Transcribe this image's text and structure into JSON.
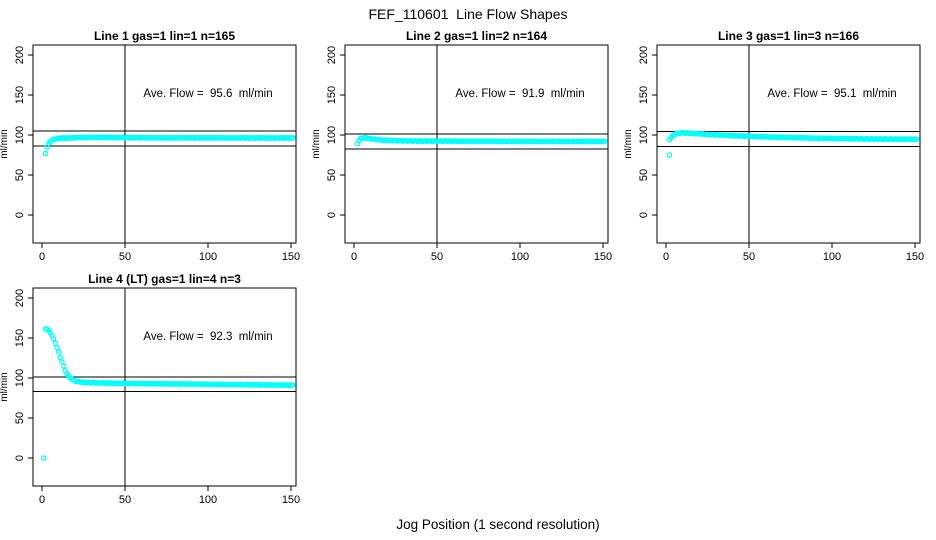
{
  "page": {
    "title": "FEF_110601  Line Flow Shapes",
    "x_axis_label": "Jog Position (1 second resolution)"
  },
  "colors": {
    "point": "#00FFFF",
    "axis": "#000000",
    "background": "#FFFFFF"
  },
  "chart_data": {
    "type": "scatter",
    "marker": "open-circle",
    "title": "FEF_110601  Line Flow Shapes",
    "xlabel": "Jog Position (1 second resolution)",
    "ylabel": "ml/min",
    "xticks": [
      0,
      50,
      100,
      150
    ],
    "yticks": [
      0,
      50,
      100,
      150,
      200
    ],
    "xlim": [
      -6,
      156
    ],
    "ylim": [
      -35,
      212
    ],
    "grid": false,
    "vline_x": 50,
    "legend": "none",
    "panels": [
      {
        "title": "Line 1 gas=1 lin=1 n=165",
        "n": 165,
        "ave_flow": 95.6,
        "annotation": "Ave. Flow =  95.6  ml/min",
        "hlines": [
          105.2,
          86.0
        ],
        "outliers": [
          [
            2,
            77
          ]
        ],
        "curve": [
          [
            3,
            85
          ],
          [
            4,
            89
          ],
          [
            5,
            92
          ],
          [
            6,
            93.5
          ],
          [
            7,
            94.5
          ],
          [
            8,
            95.2
          ],
          [
            10,
            95.8
          ],
          [
            13,
            96.2
          ],
          [
            16,
            96.4
          ],
          [
            20,
            96.6
          ],
          [
            25,
            97
          ],
          [
            32,
            97.2
          ],
          [
            40,
            96.9
          ],
          [
            60,
            96.6
          ],
          [
            80,
            96.5
          ],
          [
            100,
            96.5
          ],
          [
            120,
            96.4
          ],
          [
            151,
            96.3
          ]
        ]
      },
      {
        "title": "Line 2 gas=1 lin=2 n=164",
        "n": 164,
        "ave_flow": 91.9,
        "annotation": "Ave. Flow =  91.9  ml/min",
        "hlines": [
          101.1,
          82.7
        ],
        "outliers": [],
        "curve": [
          [
            2,
            89.5
          ],
          [
            3,
            93
          ],
          [
            4,
            95.5
          ],
          [
            5,
            96.3
          ],
          [
            6,
            96.5
          ],
          [
            7,
            96.3
          ],
          [
            8,
            96
          ],
          [
            10,
            95.4
          ],
          [
            12,
            94.8
          ],
          [
            15,
            94.1
          ],
          [
            18,
            93.6
          ],
          [
            22,
            93.1
          ],
          [
            28,
            92.8
          ],
          [
            35,
            92.5
          ],
          [
            50,
            92.4
          ],
          [
            70,
            92.2
          ],
          [
            100,
            92.1
          ],
          [
            130,
            92
          ],
          [
            151,
            92
          ]
        ]
      },
      {
        "title": "Line 3 gas=1 lin=3 n=166",
        "n": 166,
        "ave_flow": 95.1,
        "annotation": "Ave. Flow =  95.1  ml/min",
        "hlines": [
          104.6,
          85.6
        ],
        "outliers": [
          [
            2,
            75
          ]
        ],
        "curve": [
          [
            2,
            94.5
          ],
          [
            3,
            96.5
          ],
          [
            4,
            99
          ],
          [
            5,
            100.5
          ],
          [
            6,
            101.5
          ],
          [
            8,
            102.4
          ],
          [
            10,
            102.6
          ],
          [
            13,
            102.4
          ],
          [
            16,
            102
          ],
          [
            20,
            101.5
          ],
          [
            25,
            100.8
          ],
          [
            30,
            100.2
          ],
          [
            35,
            99.7
          ],
          [
            40,
            99.2
          ],
          [
            50,
            98.4
          ],
          [
            60,
            97.7
          ],
          [
            70,
            97.1
          ],
          [
            80,
            96.6
          ],
          [
            90,
            96.1
          ],
          [
            100,
            95.7
          ],
          [
            110,
            95.4
          ],
          [
            120,
            95.1
          ],
          [
            135,
            94.9
          ],
          [
            151,
            94.7
          ]
        ]
      },
      {
        "title": "Line 4 (LT) gas=1 lin=4 n=3",
        "n": 3,
        "ave_flow": 92.3,
        "annotation": "Ave. Flow =  92.3  ml/min",
        "hlines": [
          101.5,
          83.1
        ],
        "outliers": [
          [
            1,
            0
          ]
        ],
        "curve": [
          [
            2,
            162
          ],
          [
            3,
            161
          ],
          [
            4,
            159
          ],
          [
            5,
            156.5
          ],
          [
            6,
            153
          ],
          [
            7,
            148.5
          ],
          [
            8,
            143.5
          ],
          [
            9,
            138
          ],
          [
            10,
            132
          ],
          [
            11,
            126
          ],
          [
            12,
            120
          ],
          [
            13,
            114.5
          ],
          [
            14,
            109.5
          ],
          [
            15,
            105.5
          ],
          [
            16,
            102.5
          ],
          [
            17,
            100.2
          ],
          [
            18,
            98.5
          ],
          [
            19,
            97.2
          ],
          [
            20,
            96.3
          ],
          [
            22,
            95.3
          ],
          [
            25,
            94.6
          ],
          [
            28,
            94.2
          ],
          [
            32,
            94
          ],
          [
            36,
            93.8
          ],
          [
            40,
            93.6
          ],
          [
            45,
            93.4
          ],
          [
            50,
            93.3
          ],
          [
            60,
            93
          ],
          [
            70,
            92.8
          ],
          [
            80,
            92.6
          ],
          [
            90,
            92.4
          ],
          [
            100,
            92.1
          ],
          [
            110,
            91.9
          ],
          [
            120,
            91.7
          ],
          [
            130,
            91.5
          ],
          [
            140,
            91.3
          ],
          [
            151,
            91.1
          ]
        ]
      }
    ]
  }
}
